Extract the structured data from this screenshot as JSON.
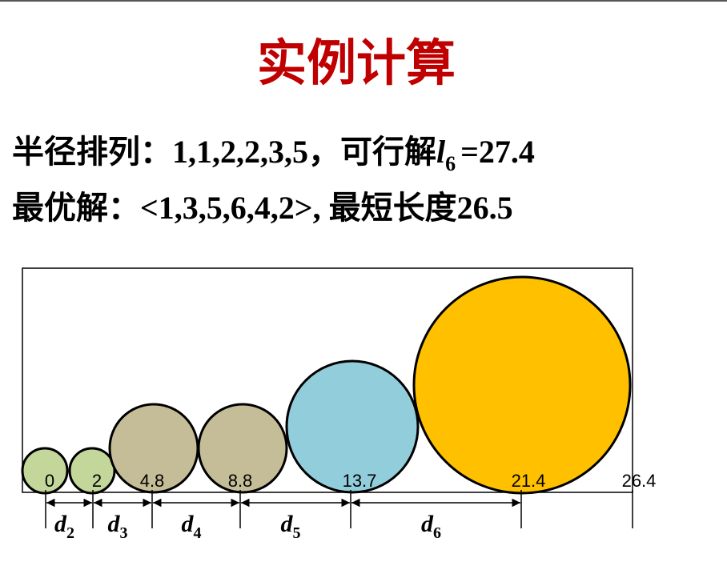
{
  "title": "实例计算",
  "lines": [
    {
      "prefix": "半径排列：1,1,2,2,3,5，可行解",
      "var": "l",
      "sub": "6",
      "suffix": "=27.4"
    },
    {
      "text": "最优解：<1,3,5,6,4,2>, 最短长度26.5"
    }
  ],
  "diagram": {
    "positions": [
      "0",
      "2",
      "4.8",
      "8.8",
      "13.7",
      "21.4",
      "26.4"
    ],
    "distances": [
      {
        "symbol": "d",
        "index": "2"
      },
      {
        "symbol": "d",
        "index": "3"
      },
      {
        "symbol": "d",
        "index": "4"
      },
      {
        "symbol": "d",
        "index": "5"
      },
      {
        "symbol": "d",
        "index": "6"
      }
    ]
  }
}
